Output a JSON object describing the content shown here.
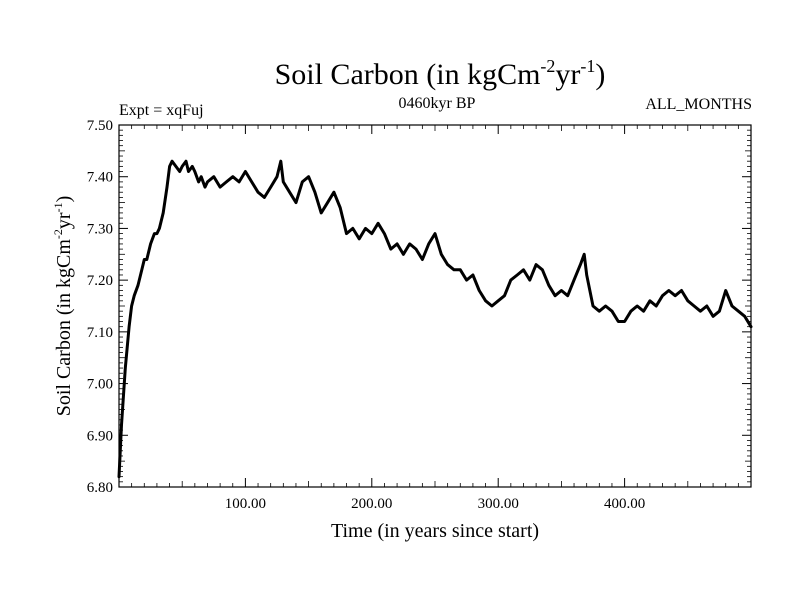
{
  "chart_data": {
    "type": "line",
    "title_main": "Soil Carbon (in kgCm",
    "title_sup1": "-2",
    "title_mid": "yr",
    "title_sup2": "-1",
    "title_end": ")",
    "subtitle_left": "Expt = xqFuj",
    "subtitle_center": "0460kyr BP",
    "subtitle_right": "ALL_MONTHS",
    "xlabel": "Time (in years since start)",
    "ylabel_main": "Soil Carbon (in kgCm",
    "ylabel_sup1": "-2",
    "ylabel_mid": "yr",
    "ylabel_sup2": "-1",
    "ylabel_end": ")",
    "xlim": [
      0,
      500
    ],
    "ylim": [
      6.8,
      7.5
    ],
    "x_ticks": [
      100,
      200,
      300,
      400
    ],
    "x_tick_labels": [
      "100.00",
      "200.00",
      "300.00",
      "400.00"
    ],
    "y_ticks": [
      6.8,
      6.9,
      7.0,
      7.1,
      7.2,
      7.3,
      7.4,
      7.5
    ],
    "y_tick_labels": [
      "6.80",
      "6.90",
      "7.00",
      "7.10",
      "7.20",
      "7.30",
      "7.40",
      "7.50"
    ],
    "series": [
      {
        "name": "Soil Carbon",
        "color": "#000000",
        "x": [
          0,
          2,
          5,
          8,
          10,
          12,
          15,
          18,
          20,
          22,
          25,
          28,
          30,
          32,
          35,
          38,
          40,
          42,
          45,
          48,
          50,
          53,
          55,
          58,
          60,
          63,
          65,
          68,
          70,
          75,
          80,
          85,
          90,
          95,
          100,
          105,
          110,
          115,
          120,
          125,
          128,
          130,
          135,
          140,
          145,
          150,
          155,
          160,
          165,
          170,
          175,
          180,
          185,
          190,
          195,
          200,
          205,
          210,
          215,
          220,
          225,
          230,
          235,
          240,
          245,
          250,
          255,
          260,
          265,
          270,
          275,
          280,
          285,
          290,
          295,
          300,
          305,
          310,
          315,
          320,
          325,
          330,
          335,
          340,
          345,
          350,
          355,
          360,
          365,
          368,
          370,
          375,
          380,
          385,
          390,
          395,
          400,
          405,
          410,
          415,
          420,
          425,
          430,
          435,
          440,
          445,
          450,
          455,
          460,
          465,
          470,
          475,
          480,
          485,
          490,
          495,
          500
        ],
        "values": [
          6.82,
          6.92,
          7.03,
          7.11,
          7.15,
          7.17,
          7.19,
          7.22,
          7.24,
          7.24,
          7.27,
          7.29,
          7.29,
          7.3,
          7.33,
          7.38,
          7.42,
          7.43,
          7.42,
          7.41,
          7.42,
          7.43,
          7.41,
          7.42,
          7.41,
          7.39,
          7.4,
          7.38,
          7.39,
          7.4,
          7.38,
          7.39,
          7.4,
          7.39,
          7.41,
          7.39,
          7.37,
          7.36,
          7.38,
          7.4,
          7.43,
          7.39,
          7.37,
          7.35,
          7.39,
          7.4,
          7.37,
          7.33,
          7.35,
          7.37,
          7.34,
          7.29,
          7.3,
          7.28,
          7.3,
          7.29,
          7.31,
          7.29,
          7.26,
          7.27,
          7.25,
          7.27,
          7.26,
          7.24,
          7.27,
          7.29,
          7.25,
          7.23,
          7.22,
          7.22,
          7.2,
          7.21,
          7.18,
          7.16,
          7.15,
          7.16,
          7.17,
          7.2,
          7.21,
          7.22,
          7.2,
          7.23,
          7.22,
          7.19,
          7.17,
          7.18,
          7.17,
          7.2,
          7.23,
          7.25,
          7.21,
          7.15,
          7.14,
          7.15,
          7.14,
          7.12,
          7.12,
          7.14,
          7.15,
          7.14,
          7.16,
          7.15,
          7.17,
          7.18,
          7.17,
          7.18,
          7.16,
          7.15,
          7.14,
          7.15,
          7.13,
          7.14,
          7.18,
          7.15,
          7.14,
          7.13,
          7.11
        ]
      }
    ]
  }
}
